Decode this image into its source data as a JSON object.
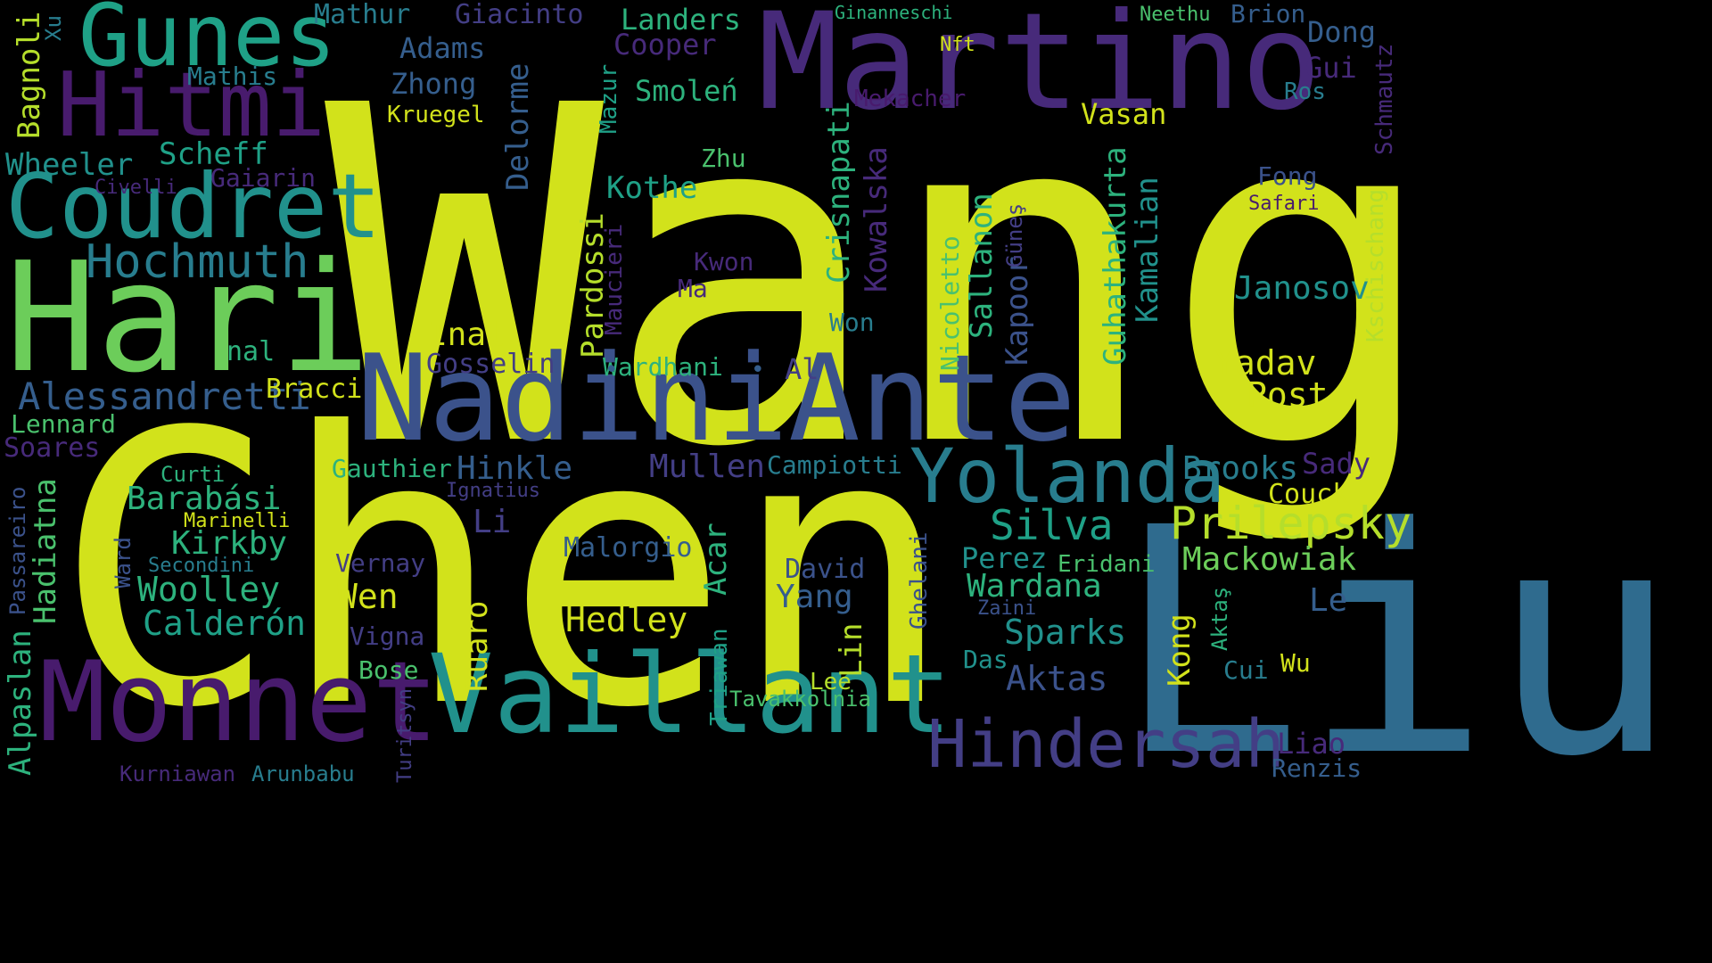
{
  "palette": {
    "yellow": "#d2e21b",
    "lime": "#b5de2b",
    "green": "#6ccd5a",
    "spring": "#4ac16d",
    "sea": "#2db27d",
    "teal": "#1fa187",
    "cyan": "#21918c",
    "steel": "#287d8e",
    "blue": "#2f6b8e",
    "slate": "#355e8d",
    "indigo": "#3b528b",
    "violet": "#433e85",
    "purple": "#472a7a",
    "plum": "#481b6d",
    "deep": "#440154"
  },
  "words": [
    {
      "text": "Wang",
      "color": "yellow"
    },
    {
      "text": "Chen",
      "color": "yellow"
    },
    {
      "text": "Liu",
      "color": "blue"
    },
    {
      "text": "Martino",
      "color": "purple"
    },
    {
      "text": "Hari",
      "color": "green"
    },
    {
      "text": "NadiniAnte",
      "color": "indigo"
    },
    {
      "text": "Vaillant",
      "color": "cyan"
    },
    {
      "text": "Monnet",
      "color": "plum"
    },
    {
      "text": "Hitmi",
      "color": "plum"
    },
    {
      "text": "Coudret",
      "color": "cyan"
    },
    {
      "text": "Gunes",
      "color": "teal"
    },
    {
      "text": "Yolanda",
      "color": "steel"
    },
    {
      "text": "Hindersah",
      "color": "violet"
    },
    {
      "text": "Hochmuth",
      "color": "steel"
    },
    {
      "text": "Prilepsky",
      "color": "lime"
    },
    {
      "text": "Alessandretti",
      "color": "slate"
    },
    {
      "text": "Silva",
      "color": "teal"
    },
    {
      "text": "Brooks",
      "color": "steel"
    },
    {
      "text": "Mackowiak",
      "color": "green"
    },
    {
      "text": "Wardana",
      "color": "sea"
    },
    {
      "text": "Yadav",
      "color": "yellow"
    },
    {
      "text": "Post",
      "color": "yellow"
    },
    {
      "text": "Janosov",
      "color": "cyan"
    },
    {
      "text": "Hedley",
      "color": "yellow"
    },
    {
      "text": "Sparks",
      "color": "cyan"
    },
    {
      "text": "Aktas",
      "color": "indigo"
    },
    {
      "text": "Calderón",
      "color": "teal"
    },
    {
      "text": "Woolley",
      "color": "sea"
    },
    {
      "text": "Kirkby",
      "color": "sea"
    },
    {
      "text": "Barabási",
      "color": "sea"
    },
    {
      "text": "Mullen",
      "color": "violet"
    },
    {
      "text": "Hinkle",
      "color": "slate"
    },
    {
      "text": "Gauthier",
      "color": "sea"
    },
    {
      "text": "Wen",
      "color": "yellow"
    },
    {
      "text": "Acar",
      "color": "sea"
    },
    {
      "text": "Malorgio",
      "color": "slate"
    },
    {
      "text": "Li",
      "color": "violet"
    },
    {
      "text": "Ruaro",
      "color": "yellow"
    },
    {
      "text": "Yang",
      "color": "slate"
    },
    {
      "text": "Lin",
      "color": "lime"
    },
    {
      "text": "Perez",
      "color": "cyan"
    },
    {
      "text": "Eridani",
      "color": "spring"
    },
    {
      "text": "Kong",
      "color": "yellow"
    },
    {
      "text": "Le",
      "color": "slate"
    },
    {
      "text": "Sady",
      "color": "purple"
    },
    {
      "text": "Couck",
      "color": "yellow"
    },
    {
      "text": "Liao",
      "color": "purple"
    },
    {
      "text": "Renzis",
      "color": "slate"
    },
    {
      "text": "Wu",
      "color": "yellow"
    },
    {
      "text": "Cui",
      "color": "steel"
    },
    {
      "text": "Das",
      "color": "cyan"
    },
    {
      "text": "Zaini",
      "color": "indigo"
    },
    {
      "text": "Aktaş",
      "color": "sea"
    },
    {
      "text": "Ghelani",
      "color": "indigo"
    },
    {
      "text": "David",
      "color": "indigo"
    },
    {
      "text": "Campiotti",
      "color": "steel"
    },
    {
      "text": "Triawan",
      "color": "teal"
    },
    {
      "text": "Tavakkolnia",
      "color": "spring"
    },
    {
      "text": "Lee",
      "color": "lime"
    },
    {
      "text": "Turitsyn",
      "color": "violet"
    },
    {
      "text": "Arunbabu",
      "color": "steel"
    },
    {
      "text": "Kurniawan",
      "color": "purple"
    },
    {
      "text": "Bose",
      "color": "spring"
    },
    {
      "text": "Vigna",
      "color": "violet"
    },
    {
      "text": "Vernay",
      "color": "violet"
    },
    {
      "text": "Secondini",
      "color": "steel"
    },
    {
      "text": "Marinelli",
      "color": "yellow"
    },
    {
      "text": "Curti",
      "color": "sea"
    },
    {
      "text": "Ward",
      "color": "indigo"
    },
    {
      "text": "Ignatius",
      "color": "violet"
    },
    {
      "text": "Passareiro",
      "color": "indigo"
    },
    {
      "text": "Hadiatna",
      "color": "spring"
    },
    {
      "text": "Alpaslan",
      "color": "sea"
    },
    {
      "text": "Soares",
      "color": "purple"
    },
    {
      "text": "Lennard",
      "color": "spring"
    },
    {
      "text": "Bracci",
      "color": "yellow"
    },
    {
      "text": "nal",
      "color": "sea"
    },
    {
      "text": "Inal",
      "color": "yellow"
    },
    {
      "text": "Gosselin",
      "color": "violet"
    },
    {
      "text": "Wardhani",
      "color": "sea"
    },
    {
      "text": "Al",
      "color": "violet"
    },
    {
      "text": "Pardossi",
      "color": "lime"
    },
    {
      "text": "Maucieri",
      "color": "purple"
    },
    {
      "text": "Kwon",
      "color": "purple"
    },
    {
      "text": "Ma",
      "color": "purple"
    },
    {
      "text": "Won",
      "color": "steel"
    },
    {
      "text": "Crisnapati",
      "color": "sea"
    },
    {
      "text": "Kowalska",
      "color": "purple"
    },
    {
      "text": "Nicoletto",
      "color": "spring"
    },
    {
      "text": "Sallanon",
      "color": "sea"
    },
    {
      "text": "Kapoor",
      "color": "indigo"
    },
    {
      "text": "Güneş",
      "color": "violet"
    },
    {
      "text": "Guhathakurta",
      "color": "sea"
    },
    {
      "text": "Kamalian",
      "color": "cyan"
    },
    {
      "text": "Kothe",
      "color": "teal"
    },
    {
      "text": "Zhu",
      "color": "spring"
    },
    {
      "text": "Delorme",
      "color": "slate"
    },
    {
      "text": "Mazur",
      "color": "teal"
    },
    {
      "text": "Scheff",
      "color": "teal"
    },
    {
      "text": "Wheeler",
      "color": "cyan"
    },
    {
      "text": "Gaiarin",
      "color": "purple"
    },
    {
      "text": "Civelli",
      "color": "purple"
    },
    {
      "text": "Mathis",
      "color": "steel"
    },
    {
      "text": "Bagnoli",
      "color": "lime"
    },
    {
      "text": "Xu",
      "color": "steel"
    },
    {
      "text": "Mathur",
      "color": "steel"
    },
    {
      "text": "Giacinto",
      "color": "violet"
    },
    {
      "text": "Landers",
      "color": "sea"
    },
    {
      "text": "Adams",
      "color": "slate"
    },
    {
      "text": "Cooper",
      "color": "purple"
    },
    {
      "text": "Zhong",
      "color": "slate"
    },
    {
      "text": "Smoleń",
      "color": "sea"
    },
    {
      "text": "Kruegel",
      "color": "yellow"
    },
    {
      "text": "Mekacher",
      "color": "plum"
    },
    {
      "text": "Vasan",
      "color": "yellow"
    },
    {
      "text": "Ginanneschi",
      "color": "sea"
    },
    {
      "text": "Neethu",
      "color": "spring"
    },
    {
      "text": "Brion",
      "color": "slate"
    },
    {
      "text": "Nft",
      "color": "yellow"
    },
    {
      "text": "Dong",
      "color": "slate"
    },
    {
      "text": "Gui",
      "color": "purple"
    },
    {
      "text": "Ros",
      "color": "steel"
    },
    {
      "text": "Schmautz",
      "color": "purple"
    },
    {
      "text": "Kschischang",
      "color": "lime"
    },
    {
      "text": "Fong",
      "color": "indigo"
    },
    {
      "text": "Safari",
      "color": "plum"
    }
  ]
}
